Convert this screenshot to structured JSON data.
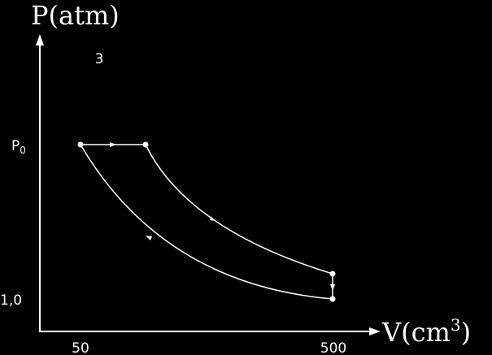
{
  "y_axis": {
    "label": "P(atm)",
    "ticks": [
      {
        "main": "P",
        "sub": "0"
      },
      "1,0"
    ]
  },
  "x_axis": {
    "label_start": "V(cm",
    "label_sup": "3",
    "label_end": ")",
    "ticks": [
      "50",
      "500"
    ]
  },
  "annotation": "3"
}
